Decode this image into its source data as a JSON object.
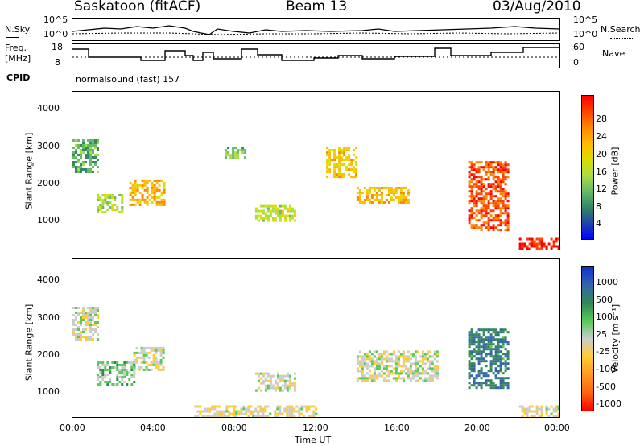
{
  "header": {
    "station": "Saskatoon (fitACF)",
    "beam": "Beam 13",
    "date": "03/Aug/2010"
  },
  "summary": {
    "nsky_label": "N.Sky",
    "nsky_ticks": [
      "10^5",
      "10^0"
    ],
    "nsearch_label": "N.Search",
    "freq_label": "Freq.",
    "freq_unit": "[MHz]",
    "freq_ticks": [
      "18",
      "8"
    ],
    "nave_label": "Nave",
    "nave_ticks": [
      "60",
      "0"
    ],
    "cpid_label": "CPID",
    "cpid_value": "normalsound (fast) 157"
  },
  "power_panel": {
    "ylabel": "Slant Range [km]",
    "yticks": [
      "4000",
      "3000",
      "2000",
      "1000"
    ],
    "cbar_label": "Power [dB]",
    "cbar_ticks": [
      "28",
      "24",
      "20",
      "16",
      "12",
      "8",
      "4"
    ],
    "cbar_colors": [
      "#ff0000",
      "#ff4400",
      "#ff8800",
      "#ffbb00",
      "#dddd00",
      "#aadd44",
      "#66bb66",
      "#338866",
      "#2244aa",
      "#0000ff"
    ]
  },
  "velocity_panel": {
    "ylabel": "Slant Range [km]",
    "yticks": [
      "4000",
      "3000",
      "2000",
      "1000"
    ],
    "cbar_label": "Velocity [m s⁻¹]",
    "cbar_ticks": [
      "1000",
      "500",
      "100",
      "25",
      "-25",
      "-100",
      "-500",
      "-1000"
    ],
    "cbar_colors": [
      "#1133cc",
      "#3366aa",
      "#338855",
      "#55cc55",
      "#cccccc",
      "#ffcc33",
      "#ff9922",
      "#ff6611",
      "#ff0000"
    ]
  },
  "time_axis": {
    "ticks": [
      "00:00",
      "04:00",
      "08:00",
      "12:00",
      "16:00",
      "20:00",
      "00:00"
    ],
    "label": "Time UT"
  },
  "chart_data": [
    {
      "type": "heatmap",
      "name": "power",
      "ylabel": "Slant Range [km]",
      "xlabel": "Time UT",
      "x_range_hours": [
        0,
        24
      ],
      "ylim": [
        180,
        4500
      ],
      "colorbar": {
        "label": "Power [dB]",
        "range": [
          0,
          32
        ]
      },
      "regions": [
        {
          "t": [
            0.0,
            1.2
          ],
          "r": [
            2300,
            3200
          ],
          "dB": 10
        },
        {
          "t": [
            1.2,
            2.5
          ],
          "r": [
            1200,
            1700
          ],
          "dB": 14
        },
        {
          "t": [
            2.8,
            4.5
          ],
          "r": [
            1400,
            2100
          ],
          "dB": 22
        },
        {
          "t": [
            7.5,
            8.5
          ],
          "r": [
            2700,
            3000
          ],
          "dB": 12
        },
        {
          "t": [
            9.0,
            11.0
          ],
          "r": [
            1000,
            1400
          ],
          "dB": 16
        },
        {
          "t": [
            12.5,
            14.0
          ],
          "r": [
            2200,
            3000
          ],
          "dB": 20
        },
        {
          "t": [
            14.0,
            16.5
          ],
          "r": [
            1500,
            1900
          ],
          "dB": 22
        },
        {
          "t": [
            19.5,
            21.5
          ],
          "r": [
            700,
            2600
          ],
          "dB": 28
        },
        {
          "t": [
            22.0,
            24.0
          ],
          "r": [
            200,
            500
          ],
          "dB": 30
        }
      ]
    },
    {
      "type": "heatmap",
      "name": "velocity",
      "ylabel": "Slant Range [km]",
      "xlabel": "Time UT",
      "x_range_hours": [
        0,
        24
      ],
      "ylim": [
        180,
        4500
      ],
      "colorbar": {
        "label": "Velocity [m s⁻¹]",
        "range": [
          -1000,
          1000
        ]
      },
      "regions": [
        {
          "t": [
            0.0,
            1.2
          ],
          "r": [
            2300,
            3200
          ],
          "v": 10
        },
        {
          "t": [
            1.2,
            3.0
          ],
          "r": [
            1100,
            1700
          ],
          "v": 200
        },
        {
          "t": [
            3.0,
            4.5
          ],
          "r": [
            1500,
            2100
          ],
          "v": 0
        },
        {
          "t": [
            6.0,
            12.0
          ],
          "r": [
            200,
            500
          ],
          "v": -100
        },
        {
          "t": [
            9.0,
            11.0
          ],
          "r": [
            900,
            1400
          ],
          "v": 0
        },
        {
          "t": [
            14.0,
            18.0
          ],
          "r": [
            1200,
            2000
          ],
          "v": 0
        },
        {
          "t": [
            19.5,
            21.5
          ],
          "r": [
            1000,
            2600
          ],
          "v": 600
        },
        {
          "t": [
            22.0,
            24.0
          ],
          "r": [
            200,
            500
          ],
          "v": -100
        }
      ]
    }
  ]
}
